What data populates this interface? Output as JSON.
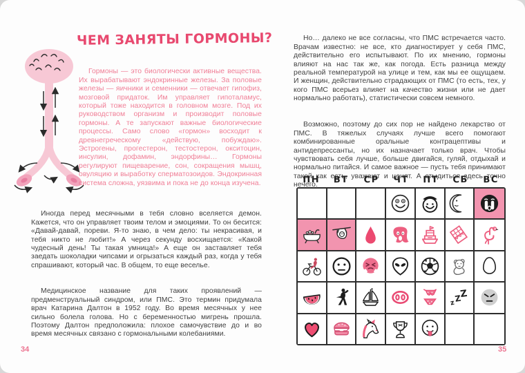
{
  "left_page": {
    "title": "ЧЕМ ЗАНЯТЫ ГОРМОНЫ?",
    "intro_paragraph": "Гормоны — это биологически активные вещества. Их вырабатывают эндокринные железы. За половые железы — яичники и семенники — отвечает гипофиз, мозговой придаток. Им управляет гипоталамус, который тоже находится в головном мозге. Под их руководством организм и производит половые гормоны. А те запускают важные биологические процессы. Само слово «гормон» восходит к древнегреческому «действую, побуждаю». Эстрогены, прогестерон, тестостерон, окситоцин, инсулин, дофамин, эндорфины… Гормоны регулируют пищеварение, сон, сокращения мышц, овуляцию и выработку сперматозоидов. Эндокринная система сложна, уязвима и пока не до конца изучена.",
    "paragraphs": [
      "Иногда перед месячными в тебя словно вселяется демон. Кажется, что он управляет твоим телом и эмоциями. То он бесится: «Давай-давай, пореви. Я-то знаю, в чем дело: ты некрасивая, и тебя никто не любит!» А через секунду восхищается: «Какой чудесный день! Ты такая умница!» А еще он заставляет тебя заедать шоколадки чипсами и огрызаться каждый раз, когда у тебя спрашивают, который час. В общем, то еще веселье.",
      "Медицинское название для таких проявлений — предменструальный синдром, или ПМС. Это термин придумала врач Катарина Далтон в 1952 году. Во время месячных у нее сильно болела голова. Но с беременностью мигрень прошла. Поэтому Далтон предположила: плохое самочувствие до и во время месячных связано с гормональными колебаниями."
    ],
    "page_number": "34"
  },
  "right_page": {
    "paragraphs": [
      "Но… далеко не все согласны, что ПМС встречается часто. Врачам известно: не все, кто диагностирует у себя ПМС, действительно его испытывают. По их мнению, гормоны влияют на нас так же, как погода. Есть разница между реальной температурой на улице и тем, как мы ее ощущаем. И женщин, действительно страдающих от ПМС (то есть, тех, у кого ПМС всерьез влияет на качество жизни или не дает нормально работать), статистически совсем немного.",
      "Возможно, поэтому до сих пор не найдено лекарство от ПМС. В тяжелых случаях лучше всего помогают комбинированные оральные контрацептивы и антидепрессанты, но их назначает только врач. Чтобы чувствовать себя лучше, больше двигайся, гуляй, отдыхай и нормально питайся. И самое важное — пусть тебя принимают такой как есть, уважают и ценят. А стыдиться здесь точно нечего."
    ],
    "page_number": "35",
    "calendar": {
      "day_headers": [
        "ПН",
        "ВТ",
        "СР",
        "ЧТ",
        "ПТ",
        "СБ",
        "ВС"
      ],
      "rows": [
        [
          {
            "icon": ""
          },
          {
            "icon": ""
          },
          {
            "icon": ""
          },
          {
            "icon": "smiling-face"
          },
          {
            "icon": "angel-face"
          },
          {
            "icon": "crescent-moon"
          },
          {
            "icon": "crying-face",
            "bg": "pink"
          }
        ],
        [
          {
            "icon": "bathtub",
            "bg": "pink"
          },
          {
            "icon": "sloth",
            "bg": "pink"
          },
          {
            "icon": "blood-drop"
          },
          {
            "icon": "screaming-face"
          },
          {
            "icon": "ship"
          },
          {
            "icon": "chocolate"
          },
          {
            "icon": "flamingo"
          }
        ],
        [
          {
            "icon": "cyclist"
          },
          {
            "icon": "neutral-face"
          },
          {
            "icon": "steam-face"
          },
          {
            "icon": "alien"
          },
          {
            "icon": "soccer-ball"
          },
          {
            "icon": "teddy-bear"
          },
          {
            "icon": "egg"
          }
        ],
        [
          {
            "icon": "watermelon"
          },
          {
            "icon": "dancer"
          },
          {
            "icon": "sailboat"
          },
          {
            "icon": "pig-nose"
          },
          {
            "icon": "bikini"
          },
          {
            "icon": "zzz"
          },
          {
            "icon": "grey-angry-face"
          }
        ],
        [
          {
            "icon": "heart"
          },
          {
            "icon": "burger"
          },
          {
            "icon": "unicorn"
          },
          {
            "icon": "trophy"
          },
          {
            "icon": "tongue-face"
          },
          {
            "icon": ""
          },
          {
            "icon": ""
          }
        ]
      ]
    }
  },
  "colors": {
    "title_pink": "#e8496f",
    "body_pink": "#f07e96",
    "icon_pink": "#ed5f80",
    "calendar_cell_pink": "#f294af",
    "ink": "#3f3f3f"
  }
}
